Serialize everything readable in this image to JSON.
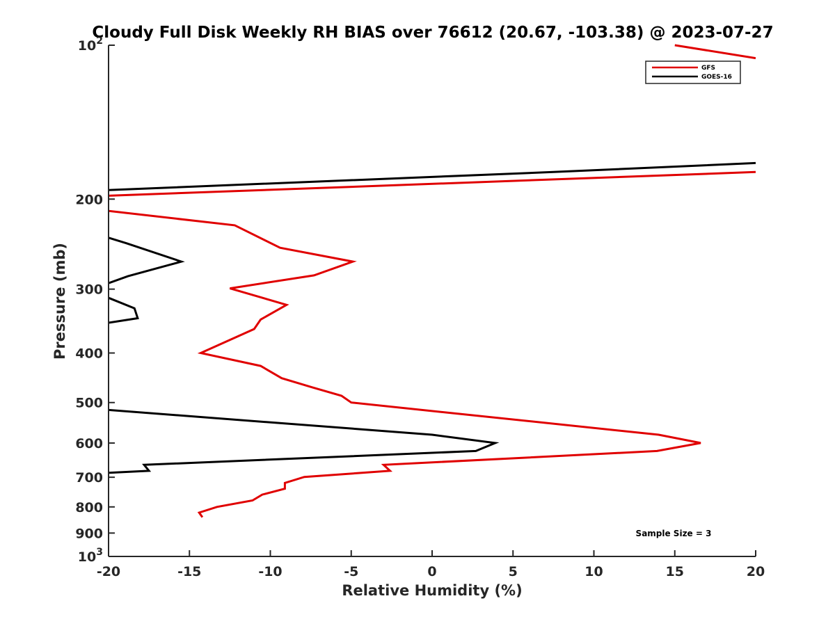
{
  "chart_data": {
    "type": "line",
    "title": "Cloudy Full Disk Weekly RH BIAS over 76612 (20.67, -103.38) @ 2023-07-27",
    "xlabel": "Relative Humidity (%)",
    "ylabel": "Pressure (mb)",
    "xlim": [
      -20,
      20
    ],
    "ylim": [
      100,
      1000
    ],
    "y_scale": "log",
    "y_reversed": true,
    "grid": false,
    "legend_position": "top-right",
    "x_ticks": [
      -20,
      -15,
      -10,
      -5,
      0,
      5,
      10,
      15,
      20
    ],
    "x_tick_labels": [
      "-20",
      "-15",
      "-10",
      "-5",
      "0",
      "5",
      "10",
      "15",
      "20"
    ],
    "y_ticks": [
      100,
      200,
      300,
      400,
      500,
      600,
      700,
      800,
      900,
      1000
    ],
    "y_tick_labels": [
      {
        "base": "10",
        "exp": "2"
      },
      {
        "base": "200",
        "exp": ""
      },
      {
        "base": "300",
        "exp": ""
      },
      {
        "base": "400",
        "exp": ""
      },
      {
        "base": "500",
        "exp": ""
      },
      {
        "base": "600",
        "exp": ""
      },
      {
        "base": "700",
        "exp": ""
      },
      {
        "base": "800",
        "exp": ""
      },
      {
        "base": "900",
        "exp": ""
      },
      {
        "base": "10",
        "exp": "3"
      }
    ],
    "annotation": "Sample Size = 3",
    "series": [
      {
        "name": "GFS",
        "color": "#e00000",
        "segments": [
          [
            [
              15,
              100
            ],
            [
              20,
              106
            ]
          ],
          [
            [
              20,
              177
            ],
            [
              -20,
              197
            ]
          ],
          [
            [
              -20,
              211
            ],
            [
              -12.2,
              225
            ],
            [
              -9.4,
              249
            ],
            [
              -4.9,
              265
            ],
            [
              -7.3,
              282
            ],
            [
              -12.5,
              299
            ],
            [
              -9,
              322
            ],
            [
              -10.6,
              344
            ],
            [
              -11,
              359
            ],
            [
              -14.3,
              400
            ],
            [
              -10.6,
              424
            ],
            [
              -9.3,
              448
            ],
            [
              -7.4,
              467
            ],
            [
              -5.6,
              485
            ],
            [
              -5,
              500
            ],
            [
              14,
              578
            ],
            [
              16.6,
              600
            ],
            [
              13.9,
              622
            ],
            [
              -3,
              662
            ],
            [
              -2.6,
              680
            ],
            [
              -7.9,
              699
            ],
            [
              -9.1,
              718
            ],
            [
              -9.1,
              737
            ],
            [
              -10.5,
              757
            ],
            [
              -11.1,
              777
            ],
            [
              -13.3,
              800
            ],
            [
              -14.4,
              821
            ],
            [
              -14.2,
              838
            ]
          ]
        ]
      },
      {
        "name": "GOES-16",
        "color": "#000000",
        "segments": [
          [
            [
              20,
              170
            ],
            [
              7.5,
              177
            ],
            [
              -20,
              192
            ]
          ],
          [
            [
              -20,
              238
            ],
            [
              -18.9,
              244
            ],
            [
              -15.5,
              265
            ],
            [
              -18.8,
              283
            ],
            [
              -20,
              292
            ]
          ],
          [
            [
              -20,
              312
            ],
            [
              -18.4,
              327
            ],
            [
              -18.2,
              342
            ],
            [
              -20,
              349
            ]
          ],
          [
            [
              -20,
              517
            ],
            [
              0,
              578
            ],
            [
              3.9,
              600
            ],
            [
              2.7,
              622
            ],
            [
              -17.8,
              662
            ],
            [
              -17.5,
              680
            ],
            [
              -20,
              686
            ]
          ]
        ]
      }
    ]
  }
}
